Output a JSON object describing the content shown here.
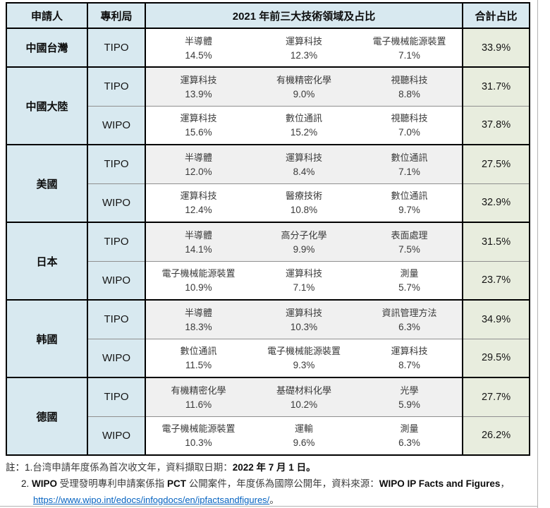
{
  "header": {
    "applicant": "申請人",
    "office": "專利局",
    "tech_title": "2021 年前三大技術領域及占比",
    "total": "合計占比"
  },
  "groups": [
    {
      "applicant": "中國台灣",
      "rows": [
        {
          "office": "TIPO",
          "c1": "半導體",
          "p1": "14.5%",
          "c2": "運算科技",
          "p2": "12.3%",
          "c3": "電子機械能源裝置",
          "p3": "7.1%",
          "total": "33.9%"
        }
      ]
    },
    {
      "applicant": "中國大陸",
      "rows": [
        {
          "office": "TIPO",
          "c1": "運算科技",
          "p1": "13.9%",
          "c2": "有機精密化學",
          "p2": "9.0%",
          "c3": "視聽科技",
          "p3": "8.8%",
          "total": "31.7%"
        },
        {
          "office": "WIPO",
          "c1": "運算科技",
          "p1": "15.6%",
          "c2": "數位通訊",
          "p2": "15.2%",
          "c3": "視聽科技",
          "p3": "7.0%",
          "total": "37.8%"
        }
      ]
    },
    {
      "applicant": "美國",
      "rows": [
        {
          "office": "TIPO",
          "c1": "半導體",
          "p1": "12.0%",
          "c2": "運算科技",
          "p2": "8.4%",
          "c3": "數位通訊",
          "p3": "7.1%",
          "total": "27.5%"
        },
        {
          "office": "WIPO",
          "c1": "運算科技",
          "p1": "12.4%",
          "c2": "醫療技術",
          "p2": "10.8%",
          "c3": "數位通訊",
          "p3": "9.7%",
          "total": "32.9%"
        }
      ]
    },
    {
      "applicant": "日本",
      "rows": [
        {
          "office": "TIPO",
          "c1": "半導體",
          "p1": "14.1%",
          "c2": "高分子化學",
          "p2": "9.9%",
          "c3": "表面處理",
          "p3": "7.5%",
          "total": "31.5%"
        },
        {
          "office": "WIPO",
          "c1": "電子機械能源裝置",
          "p1": "10.9%",
          "c2": "運算科技",
          "p2": "7.1%",
          "c3": "測量",
          "p3": "5.7%",
          "total": "23.7%"
        }
      ]
    },
    {
      "applicant": "韩國",
      "rows": [
        {
          "office": "TIPO",
          "c1": "半導體",
          "p1": "18.3%",
          "c2": "運算科技",
          "p2": "10.3%",
          "c3": "資訊管理方法",
          "p3": "6.3%",
          "total": "34.9%"
        },
        {
          "office": "WIPO",
          "c1": "數位通訊",
          "p1": "11.5%",
          "c2": "電子機械能源裝置",
          "p2": "9.3%",
          "c3": "運算科技",
          "p3": "8.7%",
          "total": "29.5%"
        }
      ]
    },
    {
      "applicant": "德國",
      "rows": [
        {
          "office": "TIPO",
          "c1": "有機精密化學",
          "p1": "11.6%",
          "c2": "基礎材料化學",
          "p2": "10.2%",
          "c3": "光學",
          "p3": "5.9%",
          "total": "27.7%"
        },
        {
          "office": "WIPO",
          "c1": "電子機械能源裝置",
          "p1": "10.3%",
          "c2": "運輸",
          "p2": "9.6%",
          "c3": "測量",
          "p3": "6.3%",
          "total": "26.2%"
        }
      ]
    }
  ],
  "footnotes": {
    "f1_pre": "註：1.",
    "f1_text": "台湾申請年度係為首次收文年，資料擷取日期：",
    "f1_date": "2022 年 7 月 1 日。",
    "f2_num": "2. ",
    "f2_wipo": "WIPO",
    "f2_t1": " 受理發明專利申請案係指 ",
    "f2_pct": "PCT",
    "f2_t2": " 公開案件，年度係為國際公開年，資料來源：",
    "f2_src": "WIPO IP Facts and Figures",
    "f2_comma": "，",
    "f3_url": "https://www.wipo.int/edocs/infogdocs/en/ipfactsandfigures/",
    "f3_suffix": "。"
  },
  "colors": {
    "header_blue": "#d8e9f0",
    "row_gray": "#f0f0f0",
    "total_green": "#e8edde",
    "link_blue": "#0563c1"
  }
}
